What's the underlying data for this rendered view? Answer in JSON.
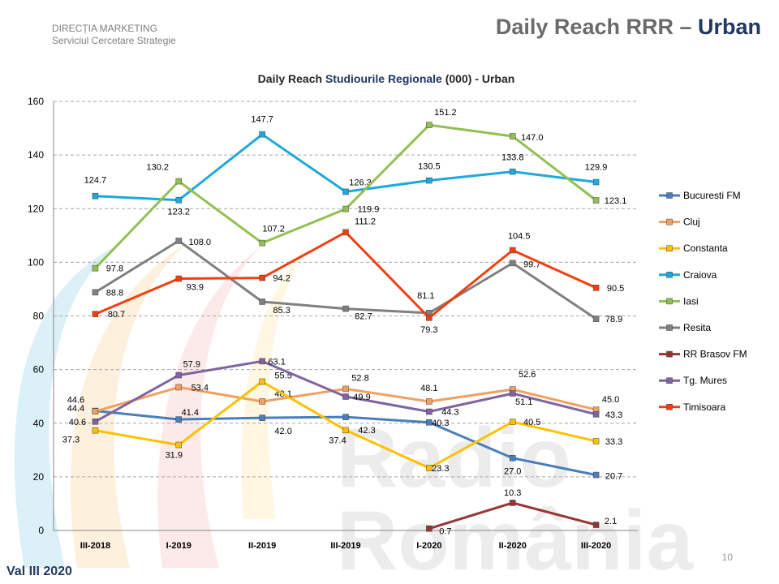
{
  "header": {
    "dept_line1": "DIRECȚIA  MARKETING",
    "dept_line2": "Serviciul  Cercetare  Strategie",
    "title_prefix": "Daily Reach RRR – ",
    "title_accent": "Urban"
  },
  "watermark": {
    "line1": "Radio",
    "line2": "România"
  },
  "footer": {
    "wave": "Val III 2020",
    "page": "10"
  },
  "chart_data": {
    "type": "line",
    "title_part1": "Daily Reach ",
    "title_part2": "Studiourile Regionale",
    "title_part3": " (000) - Urban",
    "categories": [
      "III-2018",
      "I-2019",
      "II-2019",
      "III-2019",
      "I-2020",
      "II-2020",
      "III-2020"
    ],
    "ylim": [
      0,
      160
    ],
    "yticks": [
      0,
      20,
      40,
      60,
      80,
      100,
      120,
      140,
      160
    ],
    "grid": true,
    "legend_position": "right",
    "series": [
      {
        "name": "Bucuresti FM",
        "color": "#4a7ebb",
        "values": [
          44.6,
          41.4,
          42.0,
          42.3,
          40.3,
          27.0,
          20.7
        ]
      },
      {
        "name": "Cluj",
        "color": "#f0a060",
        "values": [
          44.4,
          53.4,
          48.1,
          52.8,
          48.1,
          52.6,
          45.0
        ]
      },
      {
        "name": "Constanta",
        "color": "#ffc000",
        "values": [
          37.3,
          31.9,
          55.5,
          37.4,
          23.3,
          40.5,
          33.3
        ]
      },
      {
        "name": "Craiova",
        "color": "#1fa8dc",
        "values": [
          124.7,
          123.2,
          147.7,
          126.3,
          130.5,
          133.8,
          129.9
        ]
      },
      {
        "name": "Iasi",
        "color": "#92c050",
        "values": [
          97.8,
          130.2,
          107.2,
          119.9,
          151.2,
          147.0,
          123.1
        ]
      },
      {
        "name": "Resita",
        "color": "#808080",
        "values": [
          88.8,
          108.0,
          85.3,
          82.7,
          81.1,
          99.7,
          78.9
        ]
      },
      {
        "name": "RR Brasov FM",
        "color": "#963634",
        "values": [
          null,
          null,
          null,
          null,
          0.7,
          10.3,
          2.1
        ]
      },
      {
        "name": "Tg. Mures",
        "color": "#8064a2",
        "values": [
          40.6,
          57.9,
          63.1,
          49.9,
          44.3,
          51.1,
          43.3
        ]
      },
      {
        "name": "Timisoara",
        "color": "#f04010",
        "values": [
          80.7,
          93.9,
          94.2,
          111.2,
          79.3,
          104.5,
          90.5
        ]
      }
    ]
  }
}
